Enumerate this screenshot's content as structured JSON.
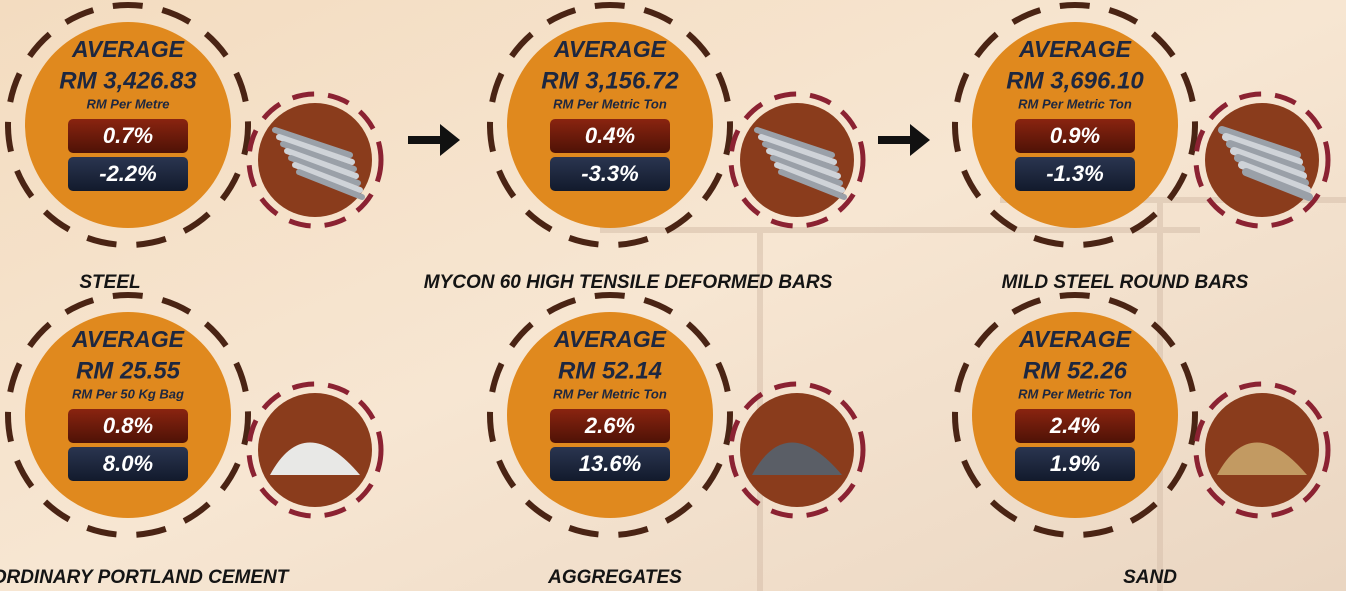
{
  "items": [
    {
      "name": "STEEL",
      "heading": "AVERAGE",
      "price": "RM 3,426.83",
      "unit": "RM Per Metre",
      "change_1": "0.7%",
      "change_2": "-2.2%"
    },
    {
      "name": "MYCON 60 HIGH TENSILE DEFORMED BARS",
      "heading": "AVERAGE",
      "price": "RM 3,156.72",
      "unit": "RM Per Metric Ton",
      "change_1": "0.4%",
      "change_2": "-3.3%"
    },
    {
      "name": "MILD STEEL ROUND BARS",
      "heading": "AVERAGE",
      "price": "RM 3,696.10",
      "unit": "RM Per Metric Ton",
      "change_1": "0.9%",
      "change_2": "-1.3%"
    },
    {
      "name": "ORDINARY PORTLAND CEMENT",
      "heading": "AVERAGE",
      "price": "RM 25.55",
      "unit": "RM Per 50 Kg Bag",
      "change_1": "0.8%",
      "change_2": "8.0%"
    },
    {
      "name": "AGGREGATES",
      "heading": "AVERAGE",
      "price": "RM 52.14",
      "unit": "RM Per Metric Ton",
      "change_1": "2.6%",
      "change_2": "13.6%"
    },
    {
      "name": "SAND",
      "heading": "AVERAGE",
      "price": "RM 52.26",
      "unit": "RM Per Metric Ton",
      "change_1": "2.4%",
      "change_2": "1.9%"
    }
  ]
}
